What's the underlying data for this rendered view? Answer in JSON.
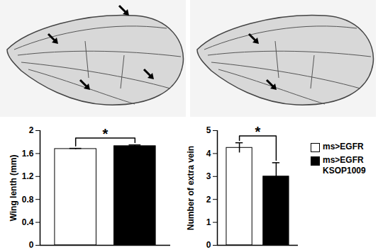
{
  "chart_data": [
    {
      "type": "bar",
      "y_label": "Wing lenth (mm)",
      "categories": [
        null
      ],
      "series": [
        {
          "name": "ms>EGFR",
          "color": "#ffffff",
          "values": [
            1.68
          ],
          "errors": [
            0.01
          ]
        },
        {
          "name": "ms>EGFR KSOP1009",
          "color": "#000000",
          "values": [
            1.73
          ],
          "errors": [
            0.02
          ]
        }
      ],
      "ylim": [
        0,
        2
      ],
      "yticks": [
        0,
        0.4,
        0.8,
        1.2,
        1.6,
        2
      ],
      "tick_labels": "y",
      "significance": "*"
    },
    {
      "type": "bar",
      "y_label": "Number of extra vein",
      "categories": [
        null
      ],
      "series": [
        {
          "name": "ms>EGFR",
          "color": "#ffffff",
          "values": [
            4.25
          ],
          "errors": [
            0.22
          ]
        },
        {
          "name": "ms>EGFR KSOP1009",
          "color": "#000000",
          "values": [
            3.0
          ],
          "errors": [
            0.6
          ]
        }
      ],
      "ylim": [
        0,
        5
      ],
      "yticks": [
        0,
        1,
        2,
        3,
        4,
        5
      ],
      "tick_labels": "y",
      "significance": "*",
      "legend": "right"
    }
  ]
}
